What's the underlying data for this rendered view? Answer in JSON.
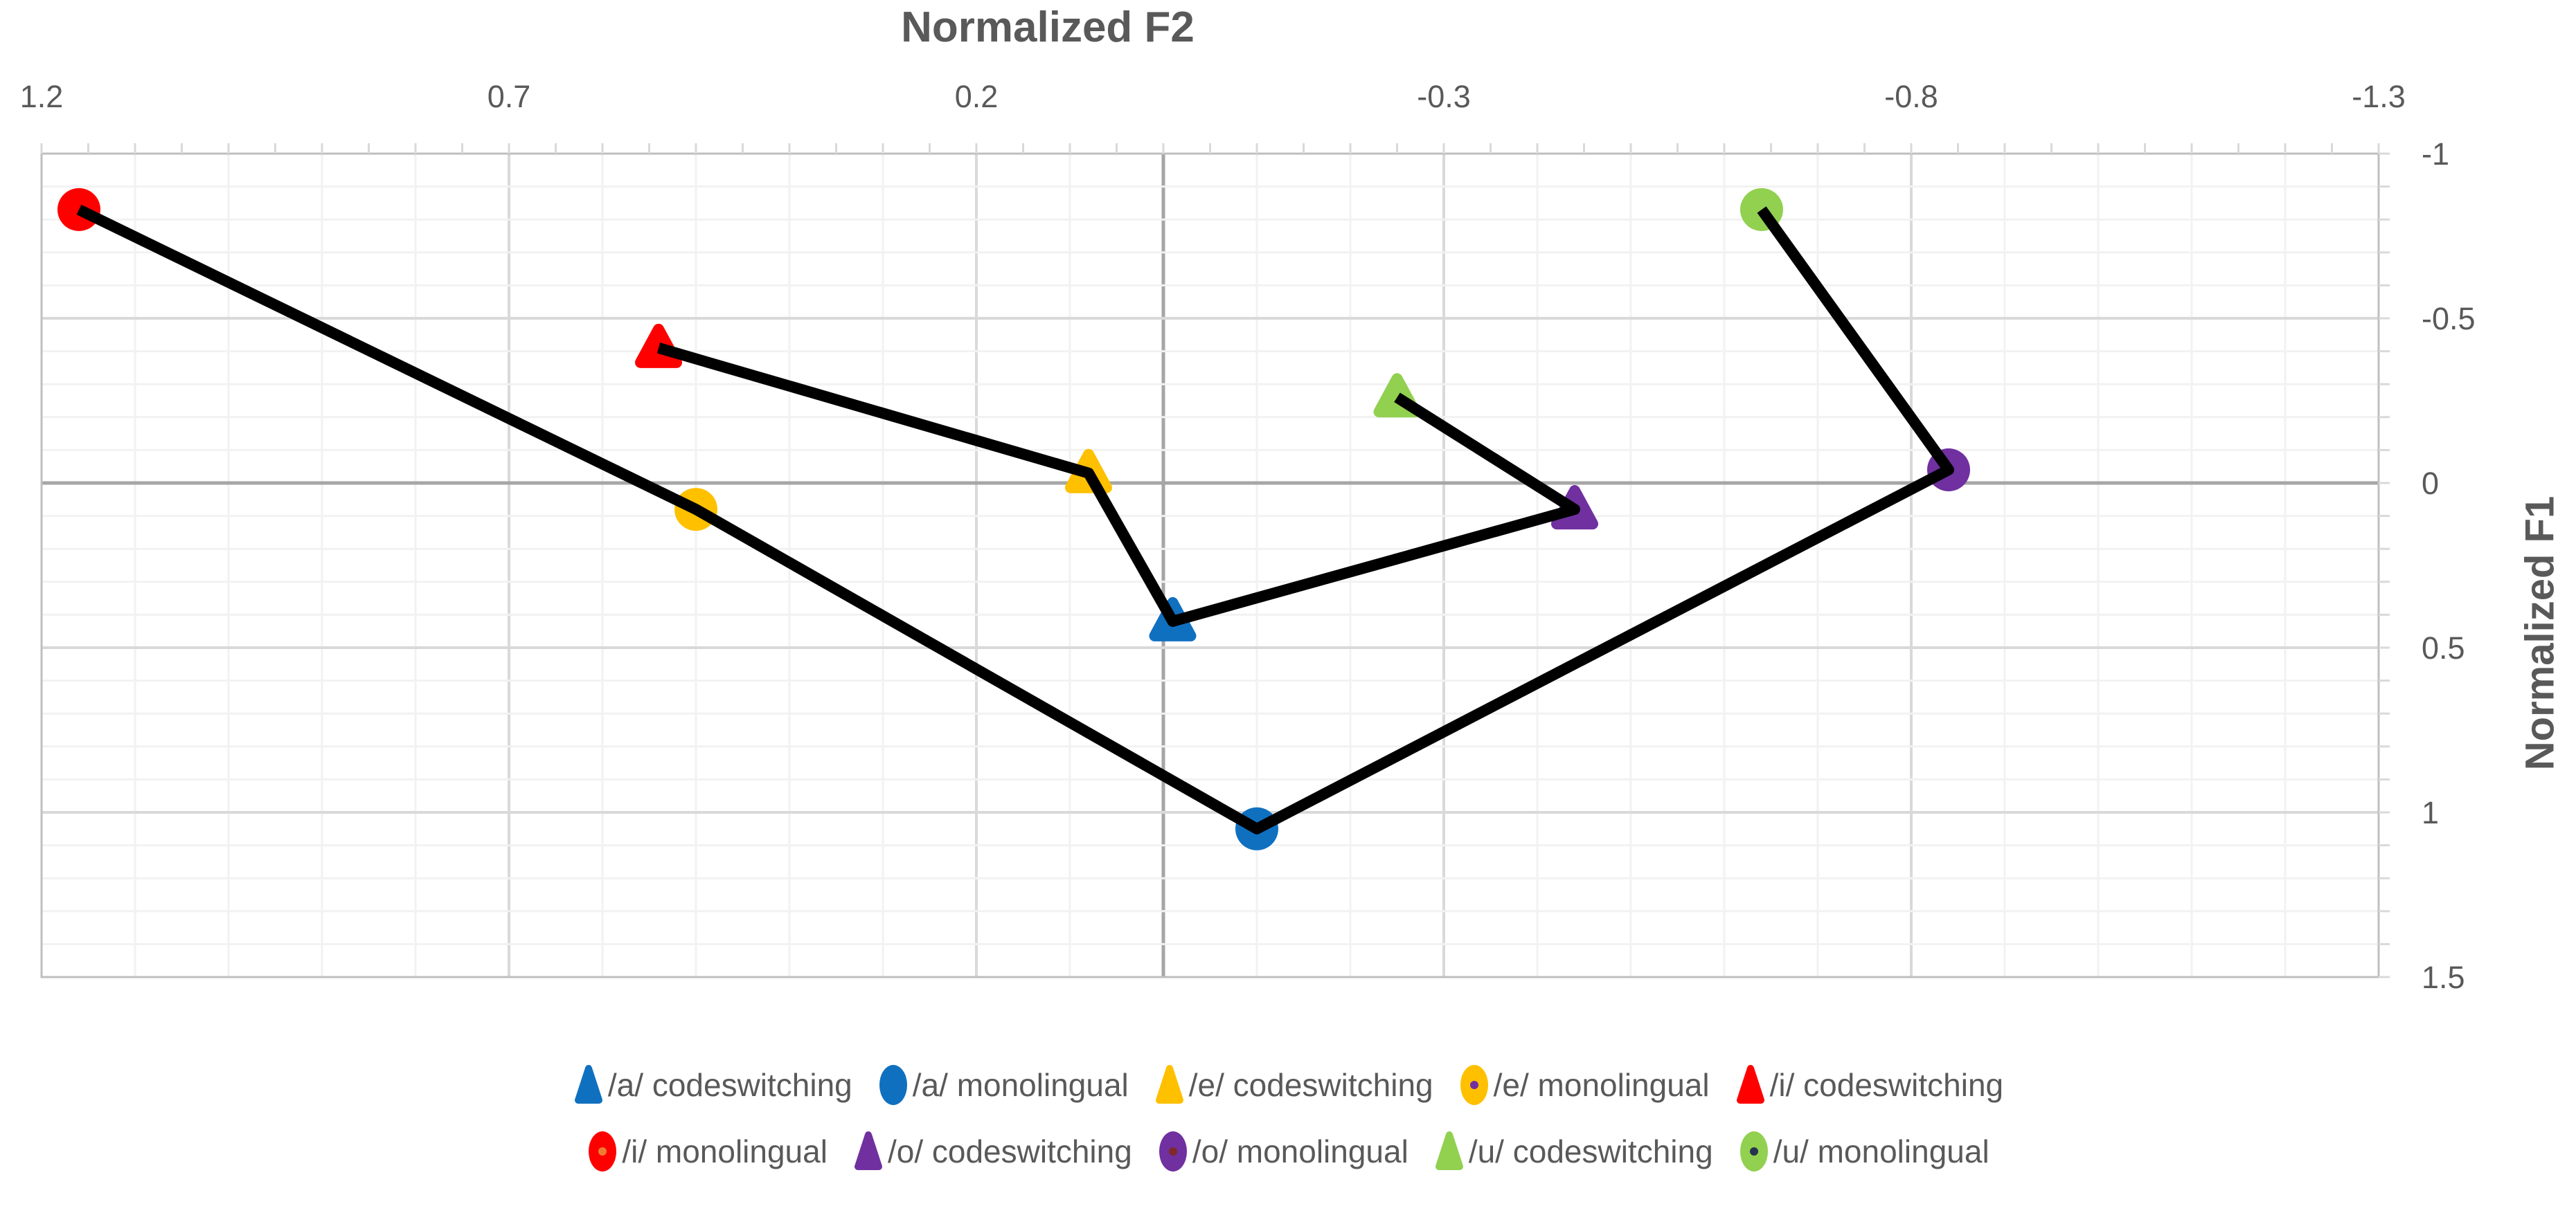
{
  "chart_data": {
    "type": "scatter",
    "title": "Normalized F2",
    "xlabel": "Normalized F2",
    "ylabel": "Normalized F1",
    "x_axis_position": "top",
    "y_axis_position": "right",
    "x_ticks": [
      1.2,
      0.7,
      0.2,
      -0.3,
      -0.8,
      -1.3
    ],
    "x_tick_labels": [
      "1.2",
      "0.7",
      "0.2",
      "-0.3",
      "-0.8",
      "-1.3"
    ],
    "y_ticks": [
      -1,
      -0.5,
      0,
      0.5,
      1,
      1.5
    ],
    "y_tick_labels": [
      "-1",
      "-0.5",
      "0",
      "0.5",
      "1",
      "1.5"
    ],
    "x_range_left_to_right": [
      1.2,
      -1.3
    ],
    "y_range_top_to_bottom": [
      -1,
      1.5
    ],
    "grid": {
      "on": true,
      "minor_step": 0.1,
      "major_step": 0.5
    },
    "legend_position": "bottom",
    "line_color": "#000000",
    "series": [
      {
        "name": "/a/ codeswitching",
        "vowel": "a",
        "condition": "codeswitching",
        "marker": "triangle",
        "color": "#1070C0",
        "center_dot": null,
        "x": -0.01,
        "y": 0.42
      },
      {
        "name": "/a/ monolingual",
        "vowel": "a",
        "condition": "monolingual",
        "marker": "circle",
        "color": "#1070C0",
        "center_dot": null,
        "x": -0.1,
        "y": 1.05
      },
      {
        "name": "/e/ codeswitching",
        "vowel": "e",
        "condition": "codeswitching",
        "marker": "triangle",
        "color": "#FFC000",
        "center_dot": null,
        "x": 0.08,
        "y": -0.03
      },
      {
        "name": "/e/ monolingual",
        "vowel": "e",
        "condition": "monolingual",
        "marker": "circle",
        "color": "#FFC000",
        "center_dot": "#7030A0",
        "x": 0.5,
        "y": 0.08
      },
      {
        "name": "/i/ codeswitching",
        "vowel": "i",
        "condition": "codeswitching",
        "marker": "triangle",
        "color": "#FF0000",
        "center_dot": null,
        "x": 0.54,
        "y": -0.41
      },
      {
        "name": "/i/ monolingual",
        "vowel": "i",
        "condition": "monolingual",
        "marker": "circle",
        "color": "#FF0000",
        "center_dot": "#ED7D31",
        "x": 1.16,
        "y": -0.83
      },
      {
        "name": "/o/ codeswitching",
        "vowel": "o",
        "condition": "codeswitching",
        "marker": "triangle",
        "color": "#7030A0",
        "center_dot": null,
        "x": -0.44,
        "y": 0.08
      },
      {
        "name": "/o/ monolingual",
        "vowel": "o",
        "condition": "monolingual",
        "marker": "circle",
        "color": "#7030A0",
        "center_dot": "#7F2A2A",
        "x": -0.84,
        "y": -0.04
      },
      {
        "name": "/u/ codeswitching",
        "vowel": "u",
        "condition": "codeswitching",
        "marker": "triangle",
        "color": "#92D050",
        "center_dot": null,
        "x": -0.25,
        "y": -0.26
      },
      {
        "name": "/u/ monolingual",
        "vowel": "u",
        "condition": "monolingual",
        "marker": "circle",
        "color": "#92D050",
        "center_dot": "#26324F",
        "x": -0.64,
        "y": -0.83
      }
    ],
    "paths": [
      {
        "name": "codeswitching",
        "points": [
          [
            0.54,
            -0.41
          ],
          [
            0.08,
            -0.03
          ],
          [
            -0.01,
            0.42
          ],
          [
            -0.44,
            0.08
          ],
          [
            -0.25,
            -0.26
          ]
        ]
      },
      {
        "name": "monolingual",
        "points": [
          [
            1.16,
            -0.83
          ],
          [
            0.5,
            0.08
          ],
          [
            -0.1,
            1.05
          ],
          [
            -0.84,
            -0.04
          ],
          [
            -0.64,
            -0.83
          ]
        ]
      }
    ],
    "legend_rows": [
      [
        "/a/ codeswitching",
        "/a/ monolingual",
        "/e/ codeswitching",
        "/e/ monolingual",
        "/i/ codeswitching"
      ],
      [
        "/i/ monolingual",
        "/o/ codeswitching",
        "/o/ monolingual",
        "/u/ codeswitching",
        "/u/ monolingual"
      ]
    ],
    "colors": {
      "text": "#595959",
      "grid_minor": "#F2F2F2",
      "grid_major": "#D9D9D9",
      "axis_zero_line": "#A6A6A6",
      "plot_border": "#BFBFBF",
      "tick_mark": "#D9D9D9",
      "background": "#FFFFFF"
    }
  }
}
